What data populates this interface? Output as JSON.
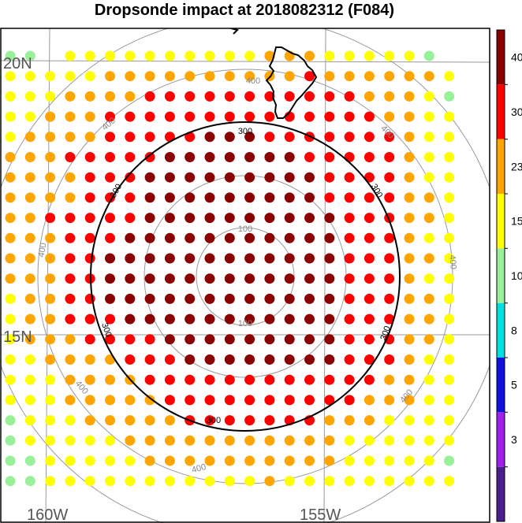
{
  "title": "Dropsonde impact at 2018082312 (F084)",
  "lat_labels": [
    "20N",
    "15N"
  ],
  "lon_labels": [
    "160W",
    "155W"
  ],
  "range_ring_labels": {
    "inner": "100",
    "middle": "300",
    "outer": "400"
  },
  "colorbar": {
    "ticks": [
      "3",
      "5",
      "8",
      "10",
      "15",
      "23",
      "30",
      "40"
    ],
    "colors": [
      "#4b1e8c",
      "#a020f0",
      "#1010e0",
      "#00e0e0",
      "#98f098",
      "#ffff00",
      "#ffa500",
      "#ff0000",
      "#8b0000"
    ]
  },
  "dot_colors": {
    "lightgreen": "#98f098",
    "yellow": "#ffff00",
    "orange": "#ffa500",
    "red": "#ff0000",
    "darkred": "#8b0000"
  },
  "chart_data": {
    "type": "scatter",
    "title": "Dropsonde impact at 2018082312 (F084)",
    "xlabel": "",
    "ylabel": "",
    "categories_by_radius": [
      "darkred",
      "red",
      "orange",
      "yellow",
      "lightgreen"
    ],
    "rows": [
      "gg yyyyyyyyyyoooyyyyyg",
      "yyyyyoooooooooorooooooy",
      "yyyoooorrrrrrrrrrroooyg",
      "yyooorrrrrrrrrrrrrrooyy",
      "yoooorrrrrdddrrrrrrroyy",
      "ooorrrrrdddddddrrrrroyy",
      "oooorrrdddddddddrrrroyy",
      "oooorrrdddddddddrrrrooy",
      "oorrrrrddddddddddrrrooy",
      "ooorrrdddddddddddrrroyy",
      "ooorrddddddddddddrrrooy",
      "ooorrddddddddddddrrroyy",
      "yoorrddddddddddddrrrooy",
      "yoorrrdddddddddddrrrooy",
      "yooorrrrdddddddddrrrooy",
      "yyoooorrrddddddddrrroyy",
      "yyyoooorrrrrrrrrrrrooyy",
      "yyyooooorrrrrrrrrroooyy",
      "gyyyooooorrrrrrroooyyyy",
      "gyyyyyoooooooooooyyyyyy",
      "ggyyyyyooooooooooyyyyyg",
      "ggyyyyyyyyyyyoyyyyyyyyy"
    ]
  }
}
